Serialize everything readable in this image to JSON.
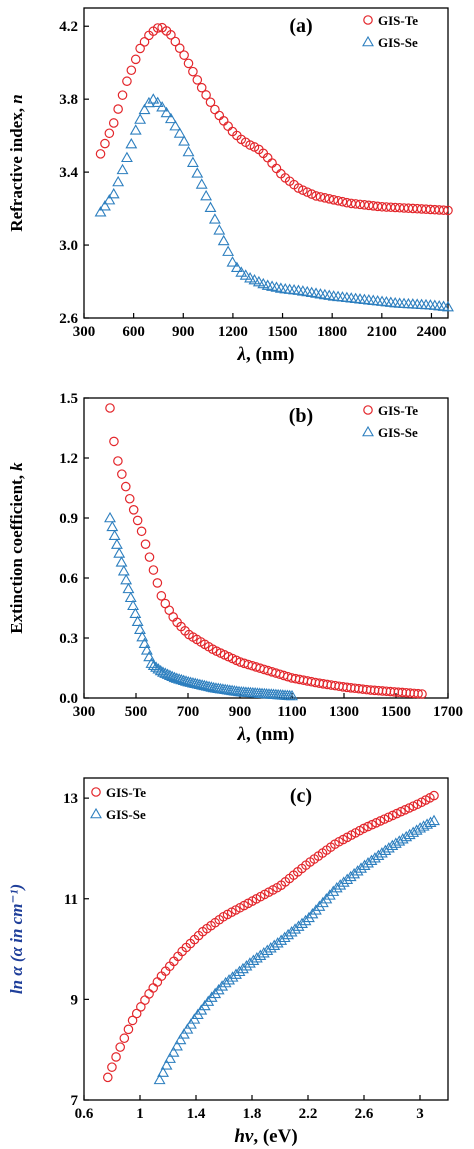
{
  "colors": {
    "te": "#e3262b",
    "se": "#2d7fbf",
    "axis": "#000000",
    "ylabel_c": "#1f3f9a"
  },
  "chart_data": [
    {
      "id": "a",
      "type": "scatter",
      "panel_label": "(a)",
      "xlabel_sym": "λ",
      "xlabel_unit": ", (nm)",
      "ylabel": "Refractive index, ",
      "ylabel_sym": "n",
      "xlim": [
        300,
        2500
      ],
      "ylim": [
        2.6,
        4.3
      ],
      "xticks": [
        300,
        600,
        900,
        1200,
        1500,
        1800,
        2100,
        2400
      ],
      "xtick_labels": [
        "300",
        "600",
        "900",
        "1200",
        "1500",
        "1800",
        "2100",
        "2400"
      ],
      "yticks": [
        2.6,
        3.0,
        3.4,
        3.8,
        4.2
      ],
      "ytick_labels": [
        "2.6",
        "3.0",
        "3.4",
        "3.8",
        "4.2"
      ],
      "legend_position": "top-right",
      "series": [
        {
          "name": "GIS-Te",
          "marker": "circle",
          "x": [
            400,
            480,
            560,
            640,
            700,
            760,
            820,
            900,
            1000,
            1100,
            1200,
            1250,
            1300,
            1350,
            1400,
            1500,
            1600,
            1700,
            1800,
            1900,
            2000,
            2100,
            2200,
            2300,
            2400,
            2500
          ],
          "y": [
            3.5,
            3.67,
            3.9,
            4.08,
            4.16,
            4.2,
            4.16,
            4.05,
            3.88,
            3.73,
            3.62,
            3.58,
            3.55,
            3.53,
            3.49,
            3.38,
            3.31,
            3.27,
            3.25,
            3.23,
            3.22,
            3.21,
            3.205,
            3.2,
            3.195,
            3.19
          ]
        },
        {
          "name": "GIS-Se",
          "marker": "triangle",
          "x": [
            400,
            480,
            560,
            620,
            680,
            720,
            760,
            820,
            900,
            1000,
            1100,
            1200,
            1250,
            1300,
            1400,
            1500,
            1600,
            1800,
            2000,
            2200,
            2400,
            2500
          ],
          "y": [
            3.18,
            3.28,
            3.48,
            3.65,
            3.77,
            3.8,
            3.77,
            3.7,
            3.58,
            3.36,
            3.12,
            2.9,
            2.85,
            2.82,
            2.78,
            2.76,
            2.75,
            2.72,
            2.7,
            2.68,
            2.67,
            2.66
          ]
        }
      ]
    },
    {
      "id": "b",
      "type": "scatter",
      "panel_label": "(b)",
      "xlabel_sym": "λ",
      "xlabel_unit": ", (nm)",
      "ylabel": "Extinction coefficient, ",
      "ylabel_sym": "k",
      "xlim": [
        300,
        1700
      ],
      "ylim": [
        0,
        1.5
      ],
      "xticks": [
        300,
        500,
        700,
        900,
        1100,
        1300,
        1500,
        1700
      ],
      "xtick_labels": [
        "300",
        "500",
        "700",
        "900",
        "1100",
        "1300",
        "1500",
        "1700"
      ],
      "yticks": [
        0,
        0.3,
        0.6,
        0.9,
        1.2,
        1.5
      ],
      "ytick_labels": [
        "0.0",
        "0.3",
        "0.6",
        "0.9",
        "1.2",
        "1.5"
      ],
      "legend_position": "top-right",
      "series": [
        {
          "name": "GIS-Te",
          "marker": "circle",
          "x": [
            400,
            420,
            450,
            480,
            520,
            560,
            600,
            650,
            700,
            800,
            900,
            1000,
            1100,
            1200,
            1300,
            1400,
            1500,
            1600
          ],
          "y": [
            1.45,
            1.23,
            1.1,
            0.98,
            0.84,
            0.67,
            0.5,
            0.39,
            0.32,
            0.24,
            0.18,
            0.14,
            0.1,
            0.075,
            0.055,
            0.04,
            0.03,
            0.02
          ]
        },
        {
          "name": "GIS-Se",
          "marker": "triangle",
          "x": [
            400,
            420,
            450,
            480,
            520,
            560,
            600,
            650,
            700,
            800,
            900,
            1000,
            1100
          ],
          "y": [
            0.9,
            0.8,
            0.65,
            0.5,
            0.32,
            0.17,
            0.13,
            0.1,
            0.08,
            0.05,
            0.03,
            0.02,
            0.01
          ]
        }
      ]
    },
    {
      "id": "c",
      "type": "scatter",
      "panel_label": "(c)",
      "xlabel_sym": "hν",
      "xlabel_unit": ", (eV)",
      "ylabel": "ln α (α in cm⁻¹)",
      "xlim": [
        0.6,
        3.2
      ],
      "ylim": [
        7,
        13.4
      ],
      "xticks": [
        0.6,
        1.0,
        1.4,
        1.8,
        2.2,
        2.6,
        3.0
      ],
      "xtick_labels": [
        "0.6",
        "1",
        "1.4",
        "1.8",
        "2.2",
        "2.6",
        "3"
      ],
      "yticks": [
        7,
        9,
        11,
        13
      ],
      "ytick_labels": [
        "7",
        "9",
        "11",
        "13"
      ],
      "legend_position": "top-left",
      "series": [
        {
          "name": "GIS-Te",
          "marker": "circle",
          "x": [
            0.77,
            0.85,
            0.95,
            1.05,
            1.15,
            1.3,
            1.45,
            1.6,
            1.8,
            2.0,
            2.2,
            2.4,
            2.6,
            2.8,
            3.0,
            3.1
          ],
          "y": [
            7.45,
            8.0,
            8.6,
            9.05,
            9.45,
            9.95,
            10.35,
            10.65,
            10.95,
            11.25,
            11.7,
            12.1,
            12.4,
            12.65,
            12.9,
            13.05
          ]
        },
        {
          "name": "GIS-Se",
          "marker": "triangle",
          "x": [
            1.14,
            1.2,
            1.3,
            1.4,
            1.5,
            1.6,
            1.8,
            2.0,
            2.2,
            2.4,
            2.6,
            2.8,
            3.0,
            3.1
          ],
          "y": [
            7.4,
            7.75,
            8.25,
            8.65,
            9.0,
            9.3,
            9.75,
            10.15,
            10.6,
            11.2,
            11.65,
            12.05,
            12.4,
            12.55
          ]
        }
      ]
    }
  ]
}
